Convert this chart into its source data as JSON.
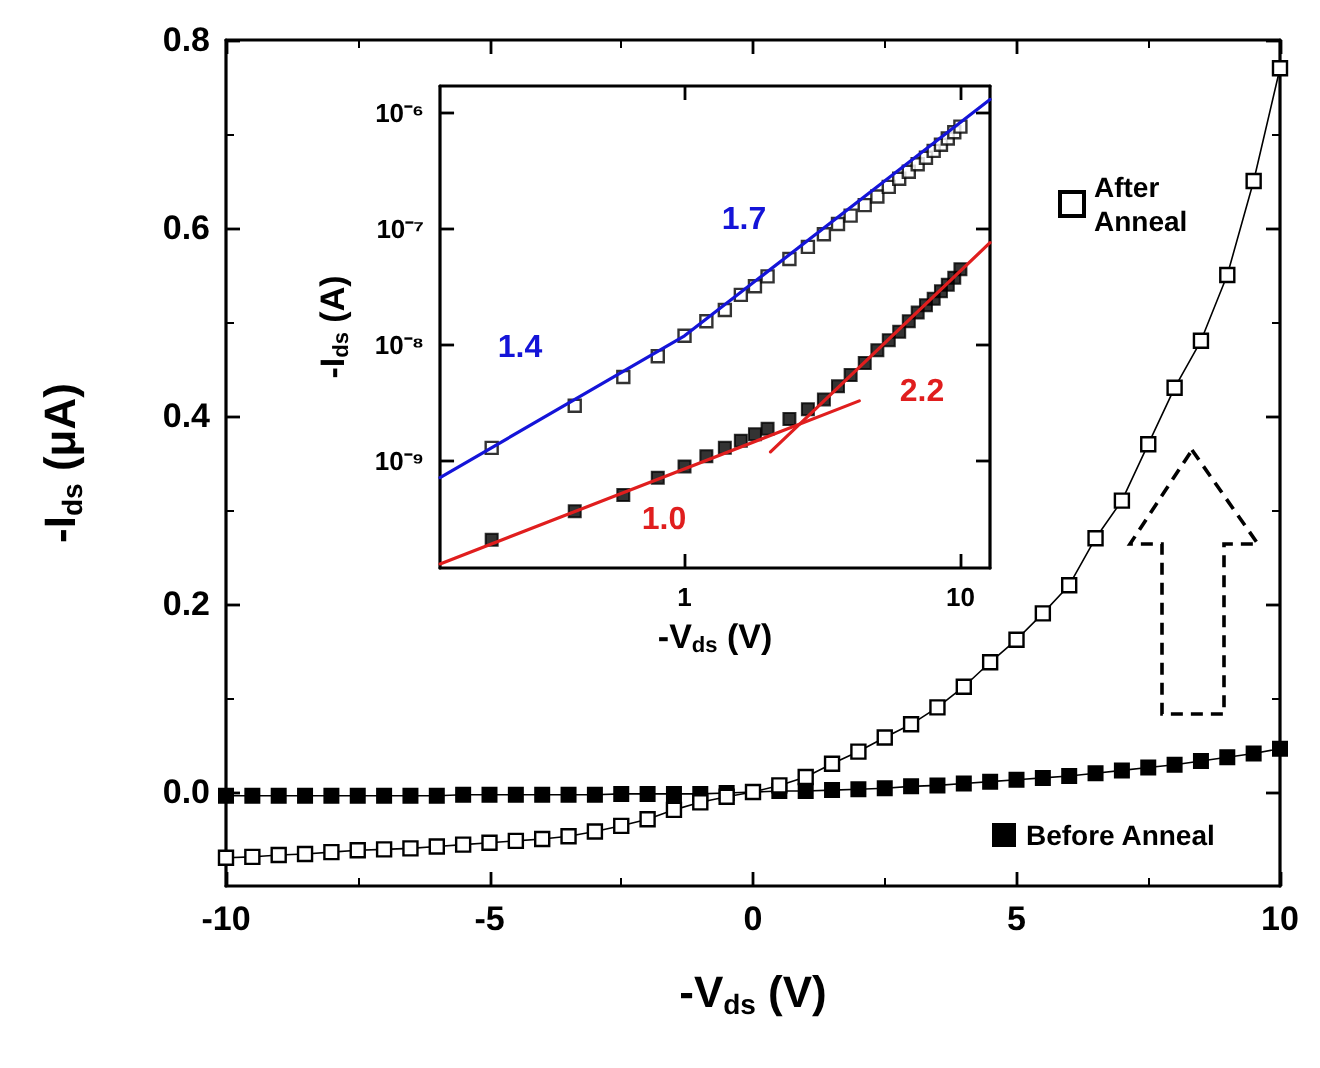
{
  "chart_data": [
    {
      "type": "line",
      "xlabel": "-V$_{ds}$ (V)",
      "ylabel": "-I$_{ds}$ (μA)",
      "xlim": [
        -10,
        10
      ],
      "xticks": [
        -10,
        -5,
        0,
        5,
        10
      ],
      "ylim": [
        -0.1,
        0.8
      ],
      "yticks": [
        {
          "value": 0,
          "label": "0.0"
        },
        0.2,
        0.4,
        0.6,
        0.8
      ],
      "marker": "square",
      "legend": "right",
      "x": [
        -10,
        -9.5,
        -9,
        -8.5,
        -8,
        -7.5,
        -7,
        -6.5,
        -6,
        -5.5,
        -5,
        -4.5,
        -4,
        -3.5,
        -3,
        -2.5,
        -2,
        -1.5,
        -1,
        -0.5,
        0,
        0.5,
        1,
        1.5,
        2,
        2.5,
        3,
        3.5,
        4,
        4.5,
        5,
        5.5,
        6,
        6.5,
        7,
        7.5,
        8,
        8.5,
        9,
        9.5,
        10
      ],
      "series": [
        {
          "name": "After Anneal",
          "color": "#000000",
          "values": [
            -0.07,
            -0.069,
            -0.067,
            -0.066,
            -0.064,
            -0.062,
            -0.061,
            -0.06,
            -0.058,
            -0.056,
            -0.054,
            -0.052,
            -0.05,
            -0.047,
            -0.042,
            -0.036,
            -0.029,
            -0.019,
            -0.011,
            -0.005,
            0,
            0.007,
            0.016,
            0.03,
            0.043,
            0.058,
            0.072,
            0.09,
            0.112,
            0.138,
            0.162,
            0.19,
            0.22,
            0.27,
            0.31,
            0.37,
            0.43,
            0.48,
            0.55,
            0.65,
            0.77
          ]
        },
        {
          "name": "Before Anneal",
          "color": "#000000",
          "values": [
            -0.004,
            -0.004,
            -0.004,
            -0.004,
            -0.004,
            -0.004,
            -0.004,
            -0.004,
            -0.004,
            -0.003,
            -0.003,
            -0.003,
            -0.003,
            -0.003,
            -0.003,
            -0.002,
            -0.002,
            -0.002,
            -0.002,
            -0.001,
            0,
            0.001,
            0.001,
            0.002,
            0.003,
            0.004,
            0.006,
            0.007,
            0.009,
            0.011,
            0.013,
            0.015,
            0.017,
            0.02,
            0.023,
            0.026,
            0.029,
            0.033,
            0.037,
            0.041,
            0.046
          ]
        }
      ]
    },
    {
      "type": "scatter",
      "xlabel": "-V$_{ds}$ (V)",
      "ylabel": "-I$_{ds}$ (A)",
      "log": "xy",
      "xlim": [
        0.13,
        12.8
      ],
      "xticks": [
        1,
        10
      ],
      "ylim": [
        1.2e-10,
        1.7e-06
      ],
      "yticks": [
        {
          "value": 1e-09,
          "label": "10⁻⁹"
        },
        {
          "value": 1e-08,
          "label": "10⁻⁸"
        },
        {
          "value": 1e-07,
          "label": "10⁻⁷"
        },
        {
          "value": 1e-06,
          "label": "10⁻⁶"
        }
      ],
      "marker": "square",
      "x": [
        0.2,
        0.4,
        0.6,
        0.8,
        1,
        1.2,
        1.4,
        1.6,
        1.8,
        2,
        2.4,
        2.8,
        3.2,
        3.6,
        4,
        4.5,
        5,
        5.5,
        6,
        6.5,
        7,
        7.5,
        8,
        8.5,
        9,
        9.5,
        10
      ],
      "series": [
        {
          "color": "#000000",
          "values": [
            1.3e-09,
            3e-09,
            5.3e-09,
            8e-09,
            1.2e-08,
            1.6e-08,
            2e-08,
            2.7e-08,
            3.2e-08,
            3.9e-08,
            5.5e-08,
            7e-08,
            9e-08,
            1.1e-07,
            1.3e-07,
            1.6e-07,
            1.9e-07,
            2.3e-07,
            2.7e-07,
            3.1e-07,
            3.6e-07,
            4.1e-07,
            4.7e-07,
            5.3e-07,
            6e-07,
            6.8e-07,
            7.6e-07
          ]
        },
        {
          "color": "#000000",
          "values": [
            2.1e-10,
            3.7e-10,
            5.1e-10,
            7.2e-10,
            9e-10,
            1.1e-09,
            1.3e-09,
            1.5e-09,
            1.7e-09,
            1.9e-09,
            2.3e-09,
            2.8e-09,
            3.4e-09,
            4.4e-09,
            5.5e-09,
            7e-09,
            9e-09,
            1.1e-08,
            1.3e-08,
            1.6e-08,
            1.9e-08,
            2.2e-08,
            2.5e-08,
            2.9e-08,
            3.3e-08,
            3.8e-08,
            4.5e-08
          ]
        },
        {
          "type": "line",
          "marker": "none",
          "color": "#1414d8",
          "x": [
            0.13,
            1,
            12.8
          ],
          "values": [
            7.2e-10,
            1.2e-08,
            1.3e-06
          ]
        },
        {
          "type": "line",
          "marker": "none",
          "color": "#e01e1e",
          "x": [
            0.13,
            4.3
          ],
          "values": [
            1.3e-10,
            3.3e-09
          ]
        },
        {
          "type": "line",
          "marker": "none",
          "color": "#e01e1e",
          "x": [
            2.05,
            12.8
          ],
          "values": [
            1.2e-09,
            7.6e-08
          ]
        }
      ],
      "annotations": [
        "1.4",
        "1.7",
        "1.0",
        "2.2"
      ]
    }
  ]
}
